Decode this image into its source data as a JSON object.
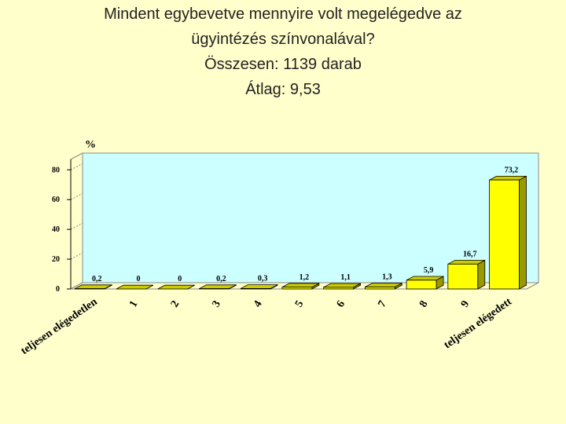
{
  "chart_data": {
    "type": "bar",
    "title": [
      "Mindent egybevetve mennyire volt megelégedve az",
      "ügyintézés színvonalával?",
      "Összesen:  1139 darab",
      "Átlag: 9,53"
    ],
    "y_label": "%",
    "categories": [
      "teljesen elégedetlen",
      "1",
      "2",
      "3",
      "4",
      "5",
      "6",
      "7",
      "8",
      "9",
      "teljesen elégedett"
    ],
    "values": [
      0.2,
      0,
      0,
      0.2,
      0.3,
      1.2,
      1.1,
      1.3,
      5.9,
      16.7,
      73.2
    ],
    "value_labels": [
      "0,2",
      "0",
      "0",
      "0,2",
      "0,3",
      "1,2",
      "1,1",
      "1,3",
      "5,9",
      "16,7",
      "73,2"
    ],
    "color": "#ffff00",
    "ylim": [
      0,
      87
    ],
    "yticks": [
      0,
      20,
      40,
      60,
      80
    ]
  }
}
